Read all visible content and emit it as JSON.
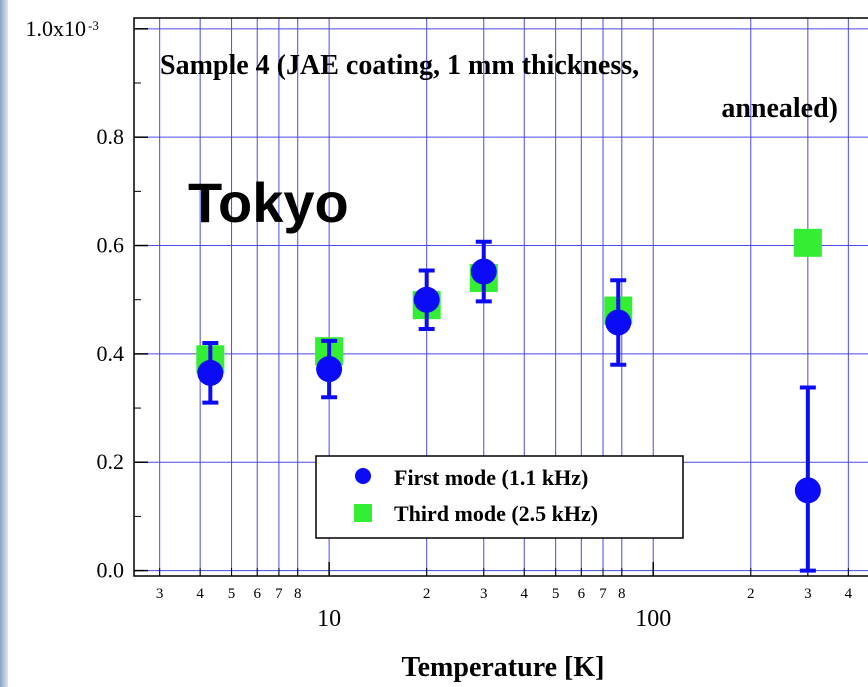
{
  "chart_data": {
    "type": "scatter",
    "title_line1": "Sample 4 (JAE coating, 1 mm thickness,",
    "title_line2": "annealed)",
    "overlay_text": "Tokyo",
    "xlabel": "Temperature [K]",
    "x_scale": "log",
    "xlim": [
      2.5,
      480
    ],
    "ylim": [
      -0.01,
      1.02
    ],
    "ylabel_exponent": "x10",
    "ylabel_exponent_power": "-3",
    "y_ticks": [
      {
        "value": 0.0,
        "label": "0.0"
      },
      {
        "value": 0.2,
        "label": "0.2"
      },
      {
        "value": 0.4,
        "label": "0.4"
      },
      {
        "value": 0.6,
        "label": "0.6"
      },
      {
        "value": 0.8,
        "label": "0.8"
      },
      {
        "value": 1.0,
        "label": "1.0x10"
      }
    ],
    "x_major_ticks": [
      {
        "value": 10,
        "label": "10"
      },
      {
        "value": 100,
        "label": "100"
      }
    ],
    "x_minor_ticks": [
      {
        "value": 3,
        "label": "3"
      },
      {
        "value": 4,
        "label": "4"
      },
      {
        "value": 5,
        "label": "5"
      },
      {
        "value": 6,
        "label": "6"
      },
      {
        "value": 7,
        "label": "7"
      },
      {
        "value": 8,
        "label": "8"
      },
      {
        "value": 20,
        "label": "2"
      },
      {
        "value": 30,
        "label": "3"
      },
      {
        "value": 40,
        "label": "4"
      },
      {
        "value": 50,
        "label": "5"
      },
      {
        "value": 60,
        "label": "6"
      },
      {
        "value": 70,
        "label": "7"
      },
      {
        "value": 80,
        "label": "8"
      },
      {
        "value": 200,
        "label": "2"
      },
      {
        "value": 300,
        "label": "3"
      },
      {
        "value": 400,
        "label": "4"
      }
    ],
    "grid": true,
    "legend_position": "bottom-center",
    "series": [
      {
        "name": "First mode (1.1 kHz)",
        "marker": "circle",
        "color": "#0b0bf5",
        "points": [
          {
            "x": 4.3,
            "y": 0.365,
            "err": 0.055
          },
          {
            "x": 10,
            "y": 0.372,
            "err": 0.052
          },
          {
            "x": 20,
            "y": 0.5,
            "err": 0.054
          },
          {
            "x": 30,
            "y": 0.552,
            "err": 0.055
          },
          {
            "x": 78,
            "y": 0.458,
            "err": 0.078
          },
          {
            "x": 300,
            "y": 0.148,
            "err": 0.19
          }
        ]
      },
      {
        "name": "Third mode (2.5 kHz)",
        "marker": "square",
        "color": "#33ee33",
        "points": [
          {
            "x": 4.3,
            "y": 0.39
          },
          {
            "x": 10,
            "y": 0.405
          },
          {
            "x": 20,
            "y": 0.49
          },
          {
            "x": 30,
            "y": 0.54
          },
          {
            "x": 78,
            "y": 0.48
          },
          {
            "x": 300,
            "y": 0.605
          }
        ]
      }
    ]
  }
}
